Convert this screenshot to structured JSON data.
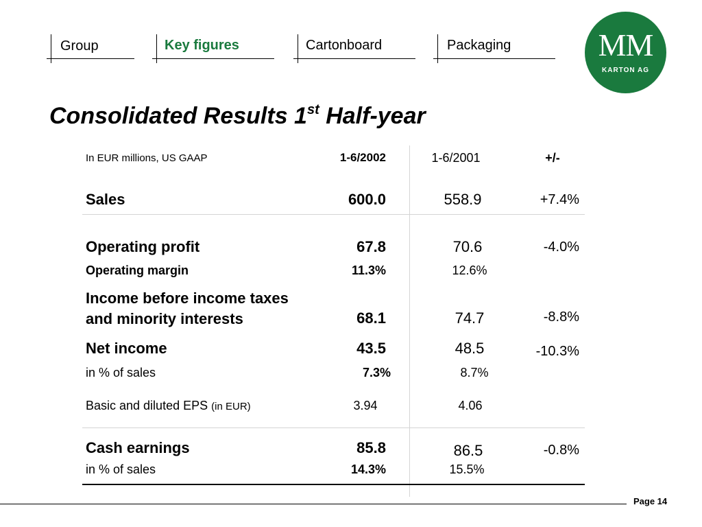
{
  "nav": {
    "tabs": [
      {
        "label": "Group",
        "active": false
      },
      {
        "label": "Key figures",
        "active": true
      },
      {
        "label": "Cartonboard",
        "active": false
      },
      {
        "label": "Packaging",
        "active": false
      }
    ]
  },
  "logo": {
    "mark": "MM",
    "subtitle": "KARTON AG",
    "color": "#1a7a3e"
  },
  "title": {
    "main": "Consolidated Results 1",
    "sup": "st",
    "rest": " Half-year"
  },
  "table": {
    "header": {
      "unit_note": "In EUR millions, US GAAP",
      "col_current": "1-6/2002",
      "col_prior": "1-6/2001",
      "col_change": "+/-"
    },
    "rows": {
      "sales": {
        "label": "Sales",
        "current": "600.0",
        "prior": "558.9",
        "change": "+7.4%"
      },
      "op_profit": {
        "label": "Operating profit",
        "current": "67.8",
        "prior": "70.6",
        "change": "-4.0%"
      },
      "op_margin": {
        "label": "Operating margin",
        "current": "11.3%",
        "prior": "12.6%"
      },
      "ebt": {
        "label_line1": "Income before income taxes",
        "label_line2": "and minority interests",
        "current": "68.1",
        "prior": "74.7",
        "change": "-8.8%"
      },
      "net_income": {
        "label": "Net income",
        "current": "43.5",
        "prior": "48.5",
        "change": "-10.3%"
      },
      "ni_pct": {
        "label": "in % of sales",
        "current": "7.3%",
        "prior": "8.7%"
      },
      "eps": {
        "label": "Basic and diluted EPS",
        "label_unit": "(in EUR)",
        "current": "3.94",
        "prior": "4.06"
      },
      "cash": {
        "label": "Cash earnings",
        "current": "85.8",
        "prior": "86.5",
        "change": "-0.8%"
      },
      "cash_pct": {
        "label": "in % of sales",
        "current": "14.3%",
        "prior": "15.5%"
      }
    }
  },
  "footer": {
    "page": "Page 14"
  }
}
